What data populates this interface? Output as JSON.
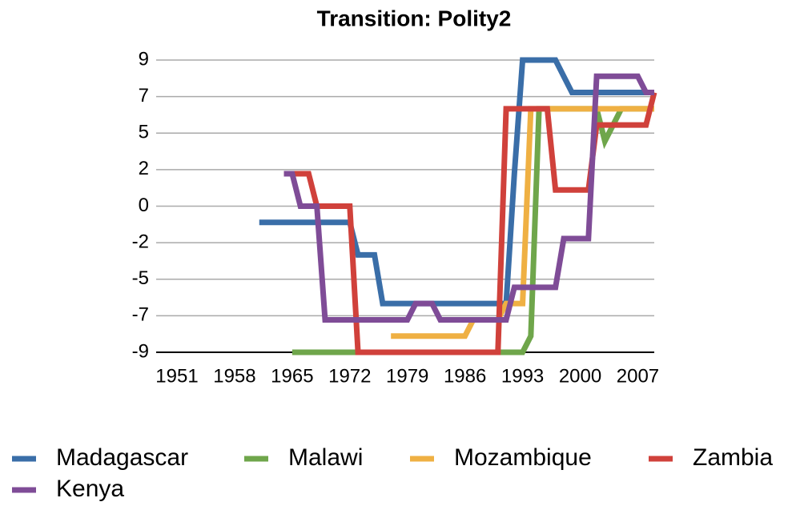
{
  "chart_data": {
    "type": "line",
    "title": "Transition: Polity2",
    "x": [
      1961,
      1962,
      1963,
      1964,
      1965,
      1966,
      1967,
      1968,
      1969,
      1970,
      1971,
      1972,
      1973,
      1974,
      1975,
      1976,
      1977,
      1978,
      1979,
      1980,
      1981,
      1982,
      1983,
      1984,
      1985,
      1986,
      1987,
      1988,
      1989,
      1990,
      1991,
      1992,
      1993,
      1994,
      1995,
      1996,
      1997,
      1998,
      1999,
      2000,
      2001,
      2002,
      2003,
      2004,
      2005,
      2006,
      2007,
      2008,
      2009
    ],
    "xlim": [
      1951,
      2009
    ],
    "xticks": [
      1951,
      1958,
      1965,
      1972,
      1979,
      1986,
      1993,
      2000,
      2007
    ],
    "ylim": [
      -9,
      9
    ],
    "yticks": [
      -9,
      {
        "value": -6.75,
        "label": "-7"
      },
      {
        "value": -4.5,
        "label": "-5"
      },
      {
        "value": -2.25,
        "label": "-2"
      },
      0,
      {
        "value": 2.25,
        "label": "2"
      },
      {
        "value": 4.5,
        "label": "5"
      },
      {
        "value": 6.75,
        "label": "7"
      },
      9
    ],
    "grid": true,
    "legend": "bottom",
    "series": [
      {
        "name": "Madagascar",
        "color": "#3a6ea8",
        "values": [
          -1,
          -1,
          -1,
          -1,
          -1,
          -1,
          -1,
          -1,
          -1,
          -1,
          -1,
          -1,
          -3,
          -3,
          -3,
          -6,
          -6,
          -6,
          -6,
          -6,
          -6,
          -6,
          -6,
          -6,
          -6,
          -6,
          -6,
          -6,
          -6,
          -6,
          -6,
          2,
          9,
          9,
          9,
          9,
          9,
          8,
          7,
          7,
          7,
          7,
          7,
          7,
          7,
          7,
          7,
          7,
          7
        ]
      },
      {
        "name": "Malawi",
        "color": "#6fa64b",
        "values": [
          null,
          null,
          null,
          null,
          -9,
          -9,
          -9,
          -9,
          -9,
          -9,
          -9,
          -9,
          -9,
          -9,
          -9,
          -9,
          -9,
          -9,
          -9,
          -9,
          -9,
          -9,
          -9,
          -9,
          -9,
          -9,
          -9,
          -9,
          -9,
          -9,
          -9,
          -9,
          -9,
          -8,
          6,
          6,
          6,
          6,
          6,
          6,
          6,
          6,
          4,
          5,
          6,
          6,
          6,
          6,
          6
        ]
      },
      {
        "name": "Mozambique",
        "color": "#efb043",
        "values": [
          null,
          null,
          null,
          null,
          null,
          null,
          null,
          null,
          null,
          null,
          null,
          null,
          null,
          null,
          null,
          null,
          -8,
          -8,
          -8,
          -8,
          -8,
          -8,
          -8,
          -8,
          -8,
          -8,
          -7,
          -7,
          -7,
          -7,
          -6,
          -6,
          -6,
          6,
          6,
          6,
          6,
          6,
          6,
          6,
          6,
          6,
          6,
          6,
          6,
          6,
          6,
          6,
          6
        ]
      },
      {
        "name": "Zambia",
        "color": "#d0413b",
        "values": [
          null,
          null,
          null,
          2,
          2,
          2,
          2,
          0,
          0,
          0,
          0,
          0,
          -9,
          -9,
          -9,
          -9,
          -9,
          -9,
          -9,
          -9,
          -9,
          -9,
          -9,
          -9,
          -9,
          -9,
          -9,
          -9,
          -9,
          -9,
          6,
          6,
          6,
          6,
          6,
          6,
          1,
          1,
          1,
          1,
          1,
          5,
          5,
          5,
          5,
          5,
          5,
          5,
          7
        ]
      },
      {
        "name": "Kenya",
        "color": "#7f4c97",
        "values": [
          null,
          null,
          null,
          2,
          2,
          0,
          0,
          0,
          -7,
          -7,
          -7,
          -7,
          -7,
          -7,
          -7,
          -7,
          -7,
          -7,
          -7,
          -6,
          -6,
          -6,
          -7,
          -7,
          -7,
          -7,
          -7,
          -7,
          -7,
          -7,
          -7,
          -5,
          -5,
          -5,
          -5,
          -5,
          -5,
          -2,
          -2,
          -2,
          -2,
          8,
          8,
          8,
          8,
          8,
          8,
          7,
          7
        ]
      }
    ]
  }
}
